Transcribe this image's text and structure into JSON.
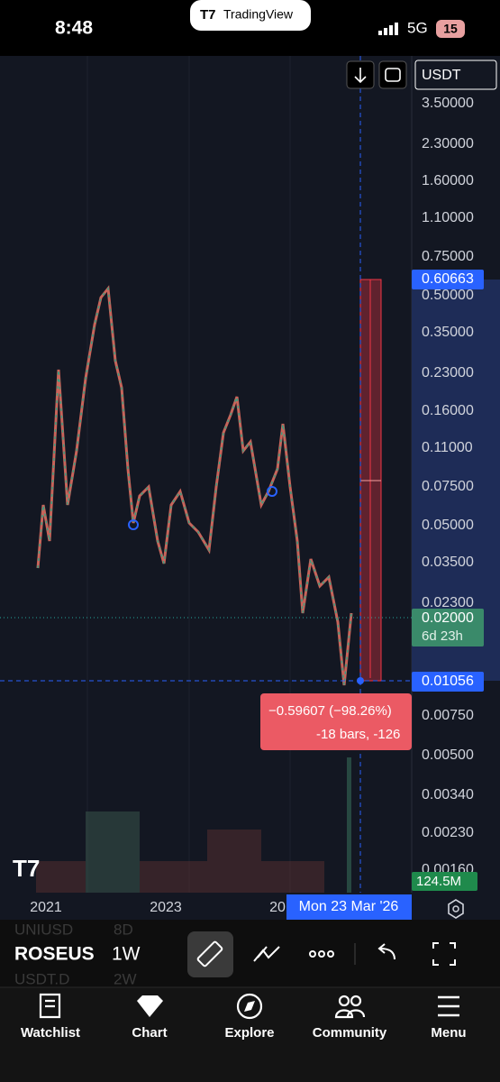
{
  "status_bar": {
    "time": "8:48",
    "banner": "TradingView",
    "network": "5G",
    "battery": "15"
  },
  "toolbar": {
    "currency": "USDT"
  },
  "price_scale": [
    "3.50000",
    "2.30000",
    "1.60000",
    "1.10000",
    "0.75000",
    "0.50000",
    "0.35000",
    "0.23000",
    "0.16000",
    "0.11000",
    "0.07500",
    "0.05000",
    "0.03500",
    "0.02300",
    "0.00750",
    "0.00500",
    "0.00340",
    "0.00230",
    "0.00160"
  ],
  "badges": {
    "high": "0.60663",
    "last": "0.02000",
    "countdown": "6d 23h",
    "low": "0.01056",
    "volume": "124.5M"
  },
  "measure": {
    "change": "−0.59607 (−98.26%)",
    "bars": "-18 bars, -126"
  },
  "time_axis": {
    "labels": [
      "2021",
      "2023",
      "20"
    ],
    "crosshair": "Mon 23 Mar '26"
  },
  "watchlist_peek": {
    "row1": [
      "UNIUSD",
      "8D"
    ],
    "row2": [
      "USDT.D",
      "2W"
    ]
  },
  "symbol_bar": {
    "symbol": "ROSEUS",
    "interval": "1W"
  },
  "nav": [
    "Watchlist",
    "Chart",
    "Explore",
    "Community",
    "Menu"
  ]
}
